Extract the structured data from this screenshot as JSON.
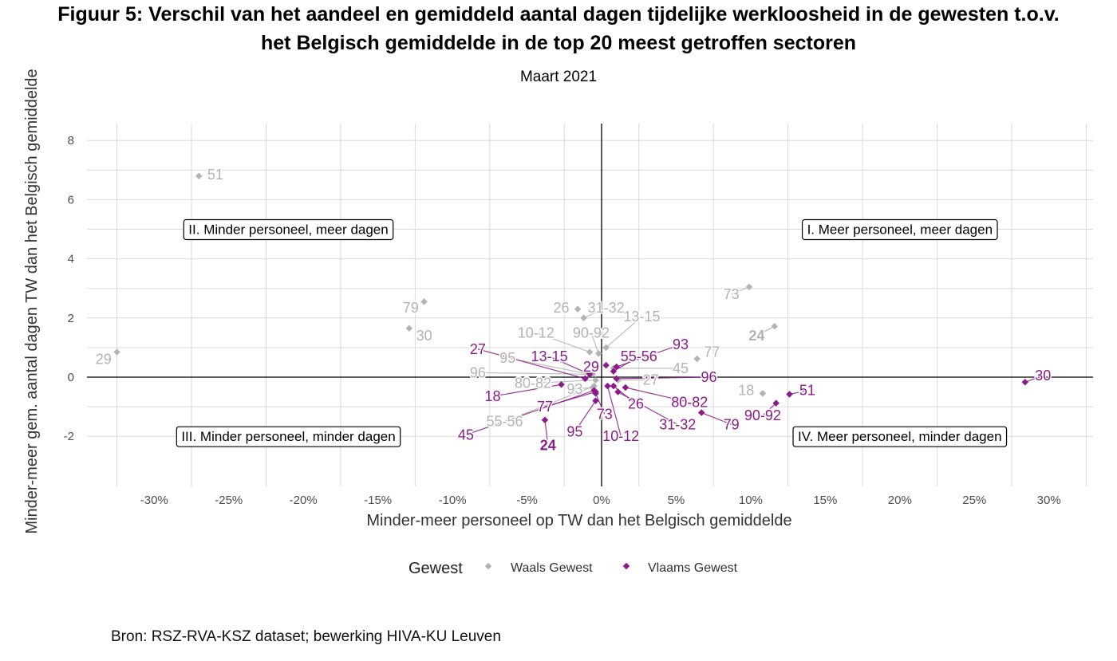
{
  "title_line1": "Figuur 5: Verschil van het aandeel en gemiddeld aantal dagen tijdelijke werkloosheid in de gewesten t.o.v.",
  "title_line2": "het Belgisch gemiddelde in de top 20 meest getroffen sectoren",
  "subtitle": "Maart 2021",
  "source": "Bron: RSZ-RVA-KSZ dataset; bewerking HIVA-KU Leuven",
  "legend": {
    "title": "Gewest",
    "items": [
      {
        "label": "Waals Gewest",
        "color": "#b3b3b3"
      },
      {
        "label": "Vlaams Gewest",
        "color": "#8b1a8b"
      }
    ]
  },
  "colors": {
    "waals": "#b3b3b3",
    "vlaams": "#8b1a8b",
    "grid": "#d9d9d9",
    "axis": "#000000"
  },
  "chart_data": {
    "type": "scatter",
    "xlabel": "Minder-meer personeel op TW dan het Belgisch gemiddelde",
    "ylabel": "Minder-meer gem. aantal dagen TW dan het Belgisch gemiddelde",
    "xlim": [
      -0.3,
      0.3
    ],
    "ylim": [
      -2,
      8
    ],
    "xticks": [
      -0.3,
      -0.25,
      -0.2,
      -0.15,
      -0.1,
      -0.05,
      0,
      0.05,
      0.1,
      0.15,
      0.2,
      0.25,
      0.3
    ],
    "xtick_labels": [
      "-30%",
      "-25%",
      "-20%",
      "-15%",
      "-10%",
      "-5%",
      "0%",
      "5%",
      "10%",
      "15%",
      "20%",
      "25%",
      "30%"
    ],
    "yticks": [
      -2,
      0,
      2,
      4,
      6,
      8
    ],
    "ytick_labels": [
      "-2",
      "0",
      "2",
      "4",
      "6",
      "8"
    ],
    "grid": true,
    "legend_position": "bottom",
    "quadrants": [
      {
        "label": "I. Meer personeel, meer dagen",
        "x": 0.2,
        "y": 5
      },
      {
        "label": "II. Minder personeel, meer dagen",
        "x": -0.21,
        "y": 5
      },
      {
        "label": "III. Minder personeel, minder dagen",
        "x": -0.21,
        "y": -2
      },
      {
        "label": "IV. Meer personeel, minder dagen",
        "x": 0.2,
        "y": -2
      }
    ],
    "series": [
      {
        "name": "Waals Gewest",
        "points": [
          {
            "label": "51",
            "x": -0.27,
            "y": 6.8,
            "lx": -0.259,
            "ly": 6.85
          },
          {
            "label": "29",
            "x": -0.325,
            "y": 0.85,
            "lx": -0.334,
            "ly": 0.6
          },
          {
            "label": "79",
            "x": -0.119,
            "y": 2.55,
            "lx": -0.128,
            "ly": 2.35
          },
          {
            "label": "30",
            "x": -0.129,
            "y": 1.65,
            "lx": -0.119,
            "ly": 1.4
          },
          {
            "label": "26",
            "x": -0.016,
            "y": 2.3,
            "lx": -0.027,
            "ly": 2.35
          },
          {
            "label": "31-32",
            "x": -0.012,
            "y": 2.0,
            "lx": 0.003,
            "ly": 2.35
          },
          {
            "label": "13-15",
            "x": 0.003,
            "y": 1.0,
            "lx": 0.027,
            "ly": 2.05
          },
          {
            "label": "10-12",
            "x": -0.008,
            "y": 0.85,
            "lx": -0.044,
            "ly": 1.5
          },
          {
            "label": "90-92",
            "x": -0.002,
            "y": 0.8,
            "lx": -0.007,
            "ly": 1.5
          },
          {
            "label": "73",
            "x": 0.099,
            "y": 3.05,
            "lx": 0.087,
            "ly": 2.8
          },
          {
            "label": "24",
            "x": 0.116,
            "y": 1.72,
            "lx": 0.104,
            "ly": 1.4,
            "bold": true
          },
          {
            "label": "77",
            "x": 0.064,
            "y": 0.62,
            "lx": 0.074,
            "ly": 0.85
          },
          {
            "label": "45",
            "x": 0.008,
            "y": 0.3,
            "lx": 0.053,
            "ly": 0.3
          },
          {
            "label": "27",
            "x": 0.011,
            "y": -0.1,
            "lx": 0.033,
            "ly": -0.1
          },
          {
            "label": "95",
            "x": -0.008,
            "y": 0.1,
            "lx": -0.063,
            "ly": 0.65
          },
          {
            "label": "96",
            "x": -0.006,
            "y": 0.1,
            "lx": -0.083,
            "ly": 0.15
          },
          {
            "label": "80-82",
            "x": -0.004,
            "y": -0.1,
            "lx": -0.046,
            "ly": -0.2
          },
          {
            "label": "93",
            "x": -0.006,
            "y": -0.35,
            "lx": -0.018,
            "ly": -0.4
          },
          {
            "label": "55-56",
            "x": -0.005,
            "y": -0.3,
            "lx": -0.065,
            "ly": -1.5
          },
          {
            "label": "18",
            "x": 0.108,
            "y": -0.55,
            "lx": 0.097,
            "ly": -0.45
          }
        ]
      },
      {
        "name": "Vlaams Gewest",
        "points": [
          {
            "label": "30",
            "x": 0.284,
            "y": -0.17,
            "lx": 0.296,
            "ly": 0.05
          },
          {
            "label": "51",
            "x": 0.126,
            "y": -0.58,
            "lx": 0.138,
            "ly": -0.45
          },
          {
            "label": "90-92",
            "x": 0.117,
            "y": -0.88,
            "lx": 0.108,
            "ly": -1.3
          },
          {
            "label": "79",
            "x": 0.067,
            "y": -1.2,
            "lx": 0.087,
            "ly": -1.6
          },
          {
            "label": "31-32",
            "x": 0.011,
            "y": -0.5,
            "lx": 0.051,
            "ly": -1.6
          },
          {
            "label": "80-82",
            "x": 0.016,
            "y": -0.35,
            "lx": 0.059,
            "ly": -0.85
          },
          {
            "label": "26",
            "x": 0.008,
            "y": -0.3,
            "lx": 0.023,
            "ly": -0.9
          },
          {
            "label": "96",
            "x": 0.01,
            "y": -0.05,
            "lx": 0.072,
            "ly": 0.0
          },
          {
            "label": "93",
            "x": 0.01,
            "y": 0.35,
            "lx": 0.053,
            "ly": 1.1
          },
          {
            "label": "55-56",
            "x": 0.008,
            "y": 0.2,
            "lx": 0.025,
            "ly": 0.7
          },
          {
            "label": "29",
            "x": 0.003,
            "y": 0.4,
            "lx": -0.007,
            "ly": 0.35
          },
          {
            "label": "27",
            "x": -0.011,
            "y": -0.05,
            "lx": -0.083,
            "ly": 0.95
          },
          {
            "label": "13-15",
            "x": -0.008,
            "y": 0.1,
            "lx": -0.035,
            "ly": 0.7
          },
          {
            "label": "18",
            "x": -0.027,
            "y": -0.25,
            "lx": -0.073,
            "ly": -0.65
          },
          {
            "label": "77",
            "x": -0.004,
            "y": -0.5,
            "lx": -0.038,
            "ly": -1.0
          },
          {
            "label": "45",
            "x": -0.005,
            "y": -0.45,
            "lx": -0.091,
            "ly": -1.95
          },
          {
            "label": "95",
            "x": -0.004,
            "y": -0.8,
            "lx": -0.018,
            "ly": -1.85
          },
          {
            "label": "73",
            "x": -0.004,
            "y": -0.55,
            "lx": 0.002,
            "ly": -1.25
          },
          {
            "label": "10-12",
            "x": 0.004,
            "y": -0.3,
            "lx": 0.013,
            "ly": -2.0
          },
          {
            "label": "24",
            "x": -0.038,
            "y": -1.45,
            "lx": -0.036,
            "ly": -2.3,
            "bold": true
          }
        ]
      }
    ]
  }
}
